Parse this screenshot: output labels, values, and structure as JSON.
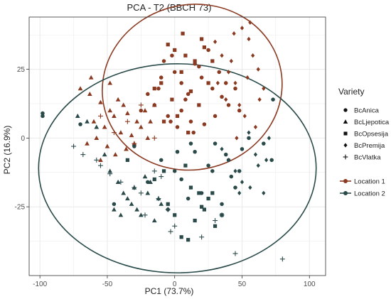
{
  "colors": {
    "location1": "#8B3A22",
    "location2": "#2A4A4A",
    "grid": "#e9e9e9",
    "axis": "#333333",
    "vlatka_dark": "#555555"
  },
  "chart_data": {
    "type": "scatter",
    "title": "PCA - T2 (BBCH 73)",
    "xlabel": "PC1 (73.7%)",
    "ylabel": "PC2 (16.9%)",
    "xlim": [
      -108,
      112
    ],
    "ylim": [
      -50,
      44
    ],
    "xticks": [
      -100,
      -50,
      0,
      50,
      100
    ],
    "yticks": [
      -25,
      0,
      25
    ],
    "grid": true,
    "legend_position": "right",
    "shape_legend": {
      "title": "Variety",
      "items": [
        "BcAnica",
        "BcLjepotica",
        "BcOpsesija",
        "BcPremija",
        "BcVlatka"
      ]
    },
    "color_legend": {
      "items": [
        "Location 1",
        "Location 2"
      ]
    },
    "ellipses": [
      {
        "group": "Location 1",
        "cx": 13,
        "cy": 18.5,
        "rx": 67,
        "ry": 30,
        "angle": 13
      },
      {
        "group": "Location 2",
        "cx": 2,
        "cy": -11,
        "rx": 103,
        "ry": 38,
        "angle": 0
      }
    ],
    "series": [
      {
        "name": "Location 1",
        "variety": "BcAnica",
        "x": [
          -8,
          0,
          5,
          10,
          -15,
          -2,
          15,
          20,
          28,
          35,
          40,
          45,
          -5,
          5,
          12,
          22,
          -10,
          8,
          18,
          30,
          -20,
          2,
          25,
          33,
          38,
          -25,
          14,
          48,
          -12,
          -3
        ],
        "y": [
          28,
          24,
          20,
          16,
          12,
          30,
          27,
          22,
          18,
          15,
          12,
          18,
          8,
          10,
          6,
          5,
          22,
          14,
          26,
          8,
          16,
          4,
          32,
          24,
          20,
          10,
          2,
          10,
          18,
          6
        ]
      },
      {
        "name": "Location 1",
        "variety": "BcLjepotica",
        "x": [
          -70,
          -63,
          -55,
          -48,
          -42,
          -38,
          -60,
          -52,
          -45,
          -35,
          -28,
          -22,
          -15,
          -65,
          -58,
          -50,
          -40,
          -32,
          -25,
          -18,
          -55,
          -44,
          -36,
          -30,
          -20,
          -62,
          -48
        ],
        "y": [
          18,
          16,
          13,
          10,
          14,
          12,
          6,
          4,
          8,
          9,
          6,
          10,
          12,
          -2,
          0,
          -3,
          2,
          1,
          4,
          6,
          -8,
          -6,
          -4,
          -2,
          0,
          22,
          20
        ]
      },
      {
        "name": "Location 1",
        "variety": "BcOpsesija",
        "x": [
          -5,
          0,
          8,
          15,
          22,
          5,
          -10,
          12,
          25,
          -2,
          18,
          2,
          -8,
          10,
          28,
          -15,
          20,
          6
        ],
        "y": [
          34,
          32,
          30,
          28,
          33,
          24,
          20,
          17,
          20,
          14,
          12,
          8,
          6,
          2,
          28,
          18,
          36,
          38
        ]
      },
      {
        "name": "Location 1",
        "variety": "BcPremija",
        "x": [
          30,
          35,
          42,
          50,
          55,
          58,
          62,
          66,
          45,
          38,
          52,
          60,
          48,
          44,
          56,
          40,
          46,
          54,
          63,
          32
        ],
        "y": [
          35,
          30,
          28,
          40,
          36,
          30,
          25,
          18,
          20,
          14,
          8,
          4,
          12,
          38,
          42,
          24,
          0,
          22,
          14,
          20
        ]
      },
      {
        "name": "Location 1",
        "variety": "BcVlatka",
        "x": [
          -55,
          -45,
          -35,
          -30,
          -25,
          -15
        ],
        "y": [
          8,
          2,
          6,
          -2,
          12,
          0
        ]
      },
      {
        "name": "Location 2",
        "variety": "BcAnica",
        "x": [
          -98,
          -98,
          -70,
          -30,
          -10,
          0,
          5,
          15,
          20,
          25,
          30,
          38,
          42,
          45,
          -20,
          10,
          35,
          48,
          55,
          72,
          73,
          66,
          50,
          40,
          12,
          2,
          -5,
          28,
          -45
        ],
        "y": [
          9,
          8,
          5,
          -3,
          -8,
          -12,
          -15,
          -5,
          -20,
          -10,
          -2,
          -6,
          -14,
          -18,
          -16,
          -22,
          -24,
          -12,
          0,
          -8,
          14,
          -2,
          -4,
          -8,
          -2,
          -5,
          -26,
          -12,
          -24
        ]
      },
      {
        "name": "Location 2",
        "variety": "BcLjepotica",
        "x": [
          -72,
          -65,
          -58,
          -52,
          -48,
          -42,
          -38,
          -35,
          -32,
          -30,
          -28,
          -25,
          -20,
          -15,
          -10,
          -45,
          -40,
          -22,
          -18,
          -12
        ],
        "y": [
          8,
          6,
          4,
          -6,
          -12,
          -16,
          -20,
          -22,
          -24,
          -18,
          -26,
          -28,
          -20,
          -30,
          -24,
          -26,
          -28,
          -14,
          -16,
          -22
        ]
      },
      {
        "name": "Location 2",
        "variety": "BcOpsesija",
        "x": [
          -35,
          -15,
          -5,
          0,
          5,
          10,
          15,
          20,
          25,
          30,
          35,
          12,
          18,
          22,
          8,
          28,
          -8
        ],
        "y": [
          -8,
          -15,
          -24,
          -28,
          -36,
          -37,
          -30,
          -25,
          -22,
          -32,
          -28,
          -18,
          -20,
          -26,
          -10,
          -20,
          -12
        ]
      },
      {
        "name": "Location 2",
        "variety": "BcPremija",
        "x": [
          45,
          50,
          60,
          66,
          70,
          62,
          55,
          40,
          35,
          48,
          68,
          56
        ],
        "y": [
          -12,
          -16,
          -6,
          -20,
          0,
          -10,
          2,
          -8,
          -4,
          -20,
          -8,
          -18
        ]
      },
      {
        "name": "Location 2",
        "variety": "BcVlatka",
        "x": [
          -75,
          -68,
          -55,
          -48,
          -40,
          -30,
          -12,
          -5,
          -15,
          -22,
          -25,
          -10,
          -3,
          0,
          20,
          30,
          35,
          45,
          80,
          -58
        ],
        "y": [
          -3,
          -6,
          -10,
          -13,
          -16,
          -18,
          -22,
          -26,
          -12,
          -28,
          -20,
          -14,
          -34,
          -32,
          -36,
          -30,
          -28,
          -42,
          -44,
          -8
        ]
      }
    ]
  }
}
